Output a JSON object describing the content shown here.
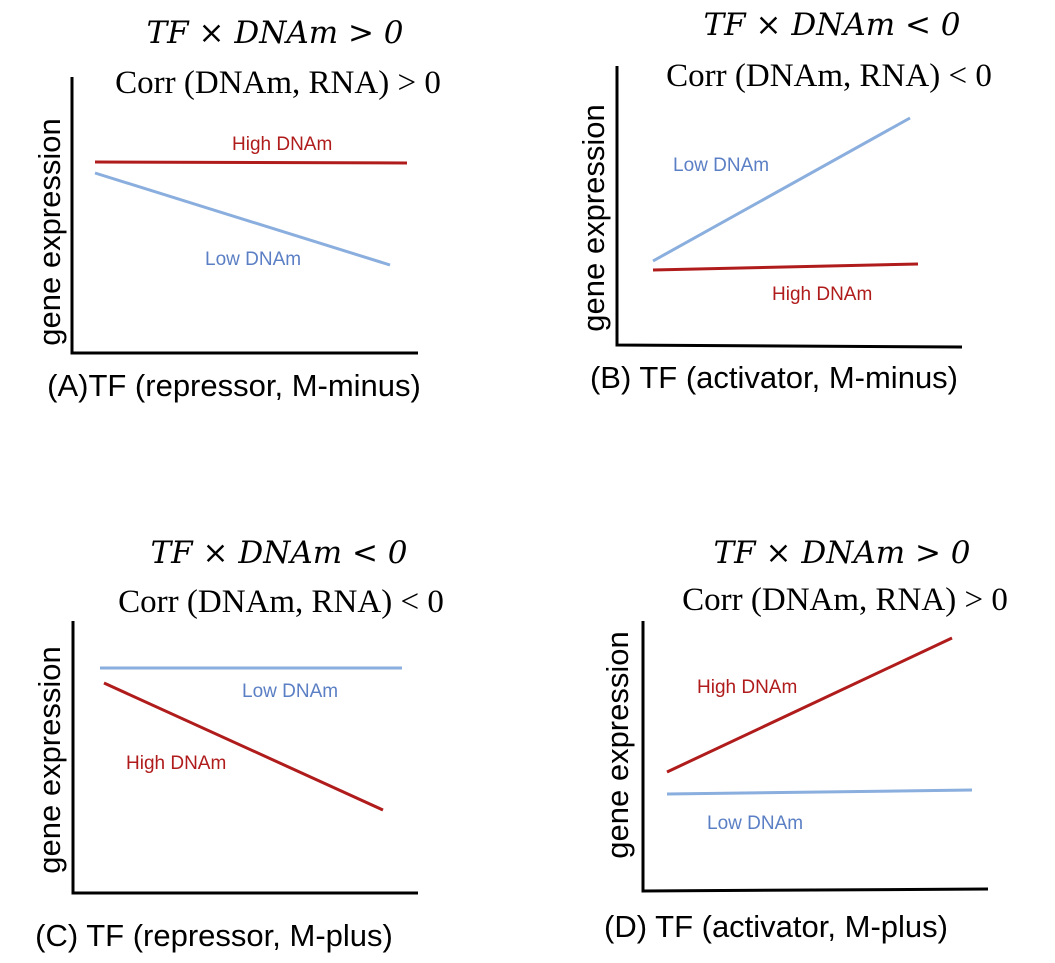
{
  "colors": {
    "high": "#b01c1c",
    "low": "#8aaedd",
    "low_text": "#5b7fc4"
  },
  "panels": [
    {
      "formula": "TF × DNAm > 0",
      "corr": "Corr (DNAm, RNA) > 0",
      "ylabel": "gene expression",
      "xlabel": "(A)TF (repressor, M-minus)",
      "high_label": "High DNAm",
      "low_label": "Low DNAm"
    },
    {
      "formula": "TF × DNAm < 0",
      "corr": "Corr (DNAm, RNA) < 0",
      "ylabel": "gene expression",
      "xlabel": "(B) TF (activator, M-minus)",
      "low_label": "Low DNAm",
      "high_label": "High DNAm"
    },
    {
      "formula": "TF × DNAm < 0",
      "corr": "Corr (DNAm, RNA) < 0",
      "ylabel": "gene expression",
      "xlabel": "(C) TF (repressor, M-plus)",
      "low_label": "Low DNAm",
      "high_label": "High DNAm"
    },
    {
      "formula": "TF × DNAm > 0",
      "corr": "Corr (DNAm, RNA) > 0",
      "ylabel": "gene expression",
      "xlabel": "(D)  TF (activator, M-plus)",
      "high_label": "High DNAm",
      "low_label": "Low DNAm"
    }
  ]
}
